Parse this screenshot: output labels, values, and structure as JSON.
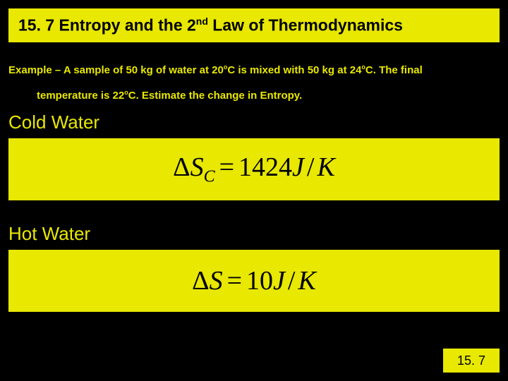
{
  "title": {
    "prefix": "15. 7 Entropy and the 2",
    "sup": "nd",
    "suffix": " Law of Thermodynamics"
  },
  "example": {
    "line1_a": "Example – A sample of 50 kg of water at 20",
    "line1_sup1": "o",
    "line1_b": "C is mixed with 50 kg at 24",
    "line1_sup2": "o",
    "line1_c": "C.  The final",
    "line2_a": "temperature is 22",
    "line2_sup": "o",
    "line2_b": "C.  Estimate the change in Entropy."
  },
  "cold": {
    "label": "Cold Water",
    "formula": {
      "delta": "Δ",
      "S": "S",
      "sub": "C",
      "eq": "=",
      "val": "1424",
      "J": "J",
      "slash": "/",
      "K": "K"
    }
  },
  "hot": {
    "label": "Hot Water",
    "formula": {
      "delta": "Δ",
      "S": "S",
      "eq": "=",
      "val": "10",
      "J": "J",
      "slash": "/",
      "K": "K"
    }
  },
  "footer": "15. 7",
  "colors": {
    "background": "#000000",
    "highlight": "#e8e800",
    "text_on_highlight": "#000000"
  }
}
